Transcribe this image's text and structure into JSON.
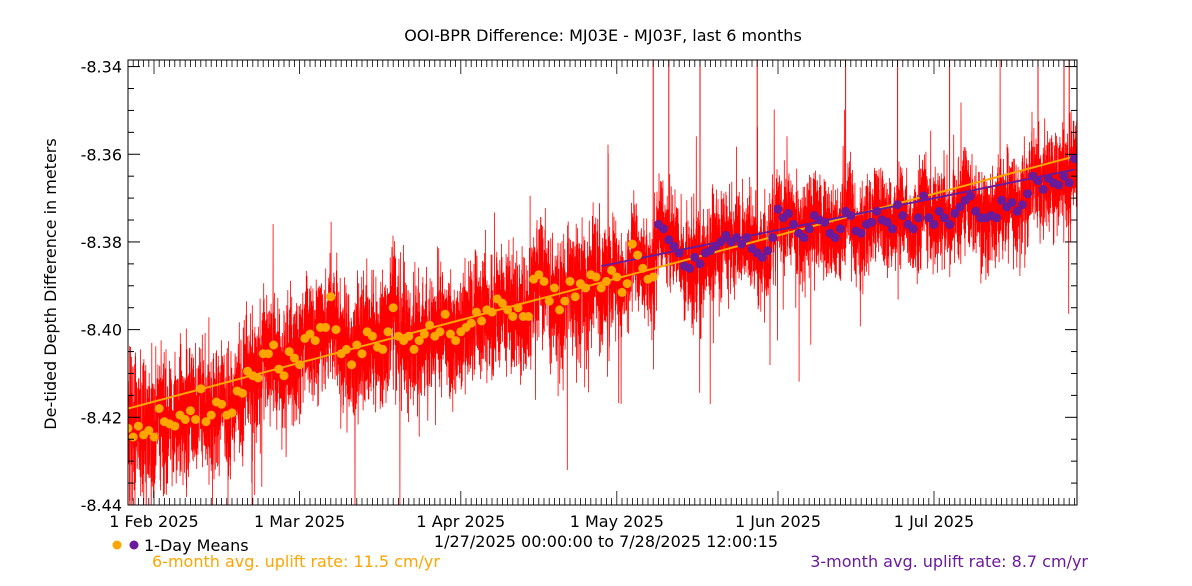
{
  "chart_data": {
    "type": "scatter",
    "title": "OOI-BPR Difference: MJ03E - MJ03F, last 6 months",
    "ylabel": "De-tided Depth Difference in meters",
    "xlabel": "",
    "ylim": [
      -8.44,
      -8.3385
    ],
    "xlim": [
      "2025-01-27",
      "2025-07-28T12:00:15"
    ],
    "y_ticks": [
      "-8.34",
      "-8.36",
      "-8.38",
      "-8.40",
      "-8.42",
      "-8.44"
    ],
    "x_ticks": [
      {
        "label": "1 Feb 2025",
        "date": "2025-02-01"
      },
      {
        "label": "1 Mar 2025",
        "date": "2025-03-01"
      },
      {
        "label": "1 Apr 2025",
        "date": "2025-04-01"
      },
      {
        "label": "1 May 2025",
        "date": "2025-05-01"
      },
      {
        "label": "1 Jun 2025",
        "date": "2025-06-01"
      },
      {
        "label": "1 Jul 2025",
        "date": "2025-07-01"
      }
    ],
    "date_range_label": "1/27/2025 00:00:00 to  7/28/2025 12:00:15",
    "legend_label": "1-Day Means",
    "rate_6month_label": "6-month avg. uplift rate:  11.5 cm/yr",
    "rate_3month_label": "3-month avg. uplift rate:  8.7 cm/yr",
    "grid": false,
    "colors": {
      "raw": "#ff0000",
      "six_month": "#ffa500",
      "three_month": "#6a1b9a"
    },
    "series": [
      {
        "name": "1-Day Means",
        "role": "six_month",
        "color": "#ffa500",
        "points": [
          [
            "2025-01-27",
            -8.4225
          ],
          [
            "2025-01-28",
            -8.4245
          ],
          [
            "2025-01-29",
            -8.422
          ],
          [
            "2025-01-30",
            -8.424
          ],
          [
            "2025-01-31",
            -8.423
          ],
          [
            "2025-02-01",
            -8.4245
          ],
          [
            "2025-02-02",
            -8.418
          ],
          [
            "2025-02-03",
            -8.421
          ],
          [
            "2025-02-04",
            -8.4215
          ],
          [
            "2025-02-05",
            -8.422
          ],
          [
            "2025-02-06",
            -8.4195
          ],
          [
            "2025-02-07",
            -8.4205
          ],
          [
            "2025-02-08",
            -8.4185
          ],
          [
            "2025-02-09",
            -8.4205
          ],
          [
            "2025-02-10",
            -8.4135
          ],
          [
            "2025-02-11",
            -8.421
          ],
          [
            "2025-02-12",
            -8.4195
          ],
          [
            "2025-02-13",
            -8.4165
          ],
          [
            "2025-02-14",
            -8.417
          ],
          [
            "2025-02-15",
            -8.4195
          ],
          [
            "2025-02-16",
            -8.419
          ],
          [
            "2025-02-17",
            -8.414
          ],
          [
            "2025-02-18",
            -8.4145
          ],
          [
            "2025-02-19",
            -8.4095
          ],
          [
            "2025-02-20",
            -8.4105
          ],
          [
            "2025-02-21",
            -8.411
          ],
          [
            "2025-02-22",
            -8.4055
          ],
          [
            "2025-02-23",
            -8.4055
          ],
          [
            "2025-02-24",
            -8.4035
          ],
          [
            "2025-02-25",
            -8.409
          ],
          [
            "2025-02-26",
            -8.4105
          ],
          [
            "2025-02-27",
            -8.405
          ],
          [
            "2025-02-28",
            -8.4065
          ],
          [
            "2025-03-01",
            -8.408
          ],
          [
            "2025-03-02",
            -8.402
          ],
          [
            "2025-03-03",
            -8.401
          ],
          [
            "2025-03-04",
            -8.4025
          ],
          [
            "2025-03-05",
            -8.3995
          ],
          [
            "2025-03-06",
            -8.3995
          ],
          [
            "2025-03-07",
            -8.3925
          ],
          [
            "2025-03-08",
            -8.4
          ],
          [
            "2025-03-09",
            -8.4055
          ],
          [
            "2025-03-10",
            -8.4045
          ],
          [
            "2025-03-11",
            -8.408
          ],
          [
            "2025-03-12",
            -8.4035
          ],
          [
            "2025-03-13",
            -8.4055
          ],
          [
            "2025-03-14",
            -8.4005
          ],
          [
            "2025-03-15",
            -8.4015
          ],
          [
            "2025-03-16",
            -8.404
          ],
          [
            "2025-03-17",
            -8.4045
          ],
          [
            "2025-03-18",
            -8.4005
          ],
          [
            "2025-03-19",
            -8.395
          ],
          [
            "2025-03-20",
            -8.4015
          ],
          [
            "2025-03-21",
            -8.4025
          ],
          [
            "2025-03-22",
            -8.4015
          ],
          [
            "2025-03-23",
            -8.4045
          ],
          [
            "2025-03-24",
            -8.4025
          ],
          [
            "2025-03-25",
            -8.401
          ],
          [
            "2025-03-26",
            -8.399
          ],
          [
            "2025-03-27",
            -8.4015
          ],
          [
            "2025-03-28",
            -8.4005
          ],
          [
            "2025-03-29",
            -8.3965
          ],
          [
            "2025-03-30",
            -8.401
          ],
          [
            "2025-03-31",
            -8.4025
          ],
          [
            "2025-04-01",
            -8.4005
          ],
          [
            "2025-04-02",
            -8.3995
          ],
          [
            "2025-04-03",
            -8.3985
          ],
          [
            "2025-04-04",
            -8.396
          ],
          [
            "2025-04-05",
            -8.398
          ],
          [
            "2025-04-06",
            -8.3955
          ],
          [
            "2025-04-07",
            -8.396
          ],
          [
            "2025-04-08",
            -8.393
          ],
          [
            "2025-04-09",
            -8.394
          ],
          [
            "2025-04-10",
            -8.3955
          ],
          [
            "2025-04-11",
            -8.397
          ],
          [
            "2025-04-12",
            -8.395
          ],
          [
            "2025-04-13",
            -8.397
          ],
          [
            "2025-04-14",
            -8.397
          ],
          [
            "2025-04-15",
            -8.3885
          ],
          [
            "2025-04-16",
            -8.3875
          ],
          [
            "2025-04-17",
            -8.389
          ],
          [
            "2025-04-18",
            -8.3935
          ],
          [
            "2025-04-19",
            -8.3905
          ],
          [
            "2025-04-20",
            -8.3955
          ],
          [
            "2025-04-21",
            -8.3935
          ],
          [
            "2025-04-22",
            -8.389
          ],
          [
            "2025-04-23",
            -8.3925
          ],
          [
            "2025-04-24",
            -8.3895
          ],
          [
            "2025-04-25",
            -8.3905
          ],
          [
            "2025-04-26",
            -8.3875
          ],
          [
            "2025-04-27",
            -8.388
          ],
          [
            "2025-04-28",
            -8.3905
          ],
          [
            "2025-04-29",
            -8.389
          ],
          [
            "2025-04-30",
            -8.3865
          ],
          [
            "2025-05-01",
            -8.388
          ],
          [
            "2025-05-02",
            -8.3915
          ],
          [
            "2025-05-03",
            -8.3895
          ],
          [
            "2025-05-04",
            -8.3805
          ],
          [
            "2025-05-05",
            -8.383
          ],
          [
            "2025-05-06",
            -8.386
          ],
          [
            "2025-05-07",
            -8.3885
          ],
          [
            "2025-05-08",
            -8.388
          ]
        ]
      },
      {
        "name": "1-Day Means",
        "role": "three_month",
        "color": "#6a1b9a",
        "points": [
          [
            "2025-05-09",
            -8.376
          ],
          [
            "2025-05-10",
            -8.377
          ],
          [
            "2025-05-11",
            -8.3795
          ],
          [
            "2025-05-12",
            -8.381
          ],
          [
            "2025-05-13",
            -8.3825
          ],
          [
            "2025-05-14",
            -8.3855
          ],
          [
            "2025-05-15",
            -8.386
          ],
          [
            "2025-05-16",
            -8.3835
          ],
          [
            "2025-05-17",
            -8.385
          ],
          [
            "2025-05-18",
            -8.3825
          ],
          [
            "2025-05-19",
            -8.382
          ],
          [
            "2025-05-20",
            -8.381
          ],
          [
            "2025-05-21",
            -8.38
          ],
          [
            "2025-05-22",
            -8.3785
          ],
          [
            "2025-05-23",
            -8.38
          ],
          [
            "2025-05-24",
            -8.379
          ],
          [
            "2025-05-25",
            -8.3805
          ],
          [
            "2025-05-26",
            -8.379
          ],
          [
            "2025-05-27",
            -8.3815
          ],
          [
            "2025-05-28",
            -8.3825
          ],
          [
            "2025-05-29",
            -8.3835
          ],
          [
            "2025-05-30",
            -8.382
          ],
          [
            "2025-05-31",
            -8.379
          ],
          [
            "2025-06-01",
            -8.3725
          ],
          [
            "2025-06-02",
            -8.3745
          ],
          [
            "2025-06-03",
            -8.3735
          ],
          [
            "2025-06-04",
            -8.376
          ],
          [
            "2025-06-05",
            -8.378
          ],
          [
            "2025-06-06",
            -8.379
          ],
          [
            "2025-06-07",
            -8.377
          ],
          [
            "2025-06-08",
            -8.374
          ],
          [
            "2025-06-09",
            -8.375
          ],
          [
            "2025-06-10",
            -8.3755
          ],
          [
            "2025-06-11",
            -8.378
          ],
          [
            "2025-06-12",
            -8.379
          ],
          [
            "2025-06-13",
            -8.377
          ],
          [
            "2025-06-14",
            -8.373
          ],
          [
            "2025-06-15",
            -8.374
          ],
          [
            "2025-06-16",
            -8.3775
          ],
          [
            "2025-06-17",
            -8.378
          ],
          [
            "2025-06-18",
            -8.376
          ],
          [
            "2025-06-19",
            -8.3755
          ],
          [
            "2025-06-20",
            -8.373
          ],
          [
            "2025-06-21",
            -8.375
          ],
          [
            "2025-06-22",
            -8.3755
          ],
          [
            "2025-06-23",
            -8.377
          ],
          [
            "2025-06-24",
            -8.3715
          ],
          [
            "2025-06-25",
            -8.374
          ],
          [
            "2025-06-26",
            -8.376
          ],
          [
            "2025-06-27",
            -8.377
          ],
          [
            "2025-06-28",
            -8.3745
          ],
          [
            "2025-06-29",
            -8.3695
          ],
          [
            "2025-06-30",
            -8.3745
          ],
          [
            "2025-07-01",
            -8.376
          ],
          [
            "2025-07-02",
            -8.373
          ],
          [
            "2025-07-03",
            -8.3745
          ],
          [
            "2025-07-04",
            -8.376
          ],
          [
            "2025-07-05",
            -8.3735
          ],
          [
            "2025-07-06",
            -8.372
          ],
          [
            "2025-07-07",
            -8.3705
          ],
          [
            "2025-07-08",
            -8.3695
          ],
          [
            "2025-07-09",
            -8.373
          ],
          [
            "2025-07-10",
            -8.3745
          ],
          [
            "2025-07-11",
            -8.3745
          ],
          [
            "2025-07-12",
            -8.374
          ],
          [
            "2025-07-13",
            -8.3745
          ],
          [
            "2025-07-14",
            -8.3705
          ],
          [
            "2025-07-15",
            -8.372
          ],
          [
            "2025-07-16",
            -8.371
          ],
          [
            "2025-07-17",
            -8.373
          ],
          [
            "2025-07-18",
            -8.3715
          ],
          [
            "2025-07-19",
            -8.369
          ],
          [
            "2025-07-20",
            -8.365
          ],
          [
            "2025-07-21",
            -8.366
          ],
          [
            "2025-07-22",
            -8.368
          ],
          [
            "2025-07-23",
            -8.3655
          ],
          [
            "2025-07-24",
            -8.3665
          ],
          [
            "2025-07-25",
            -8.367
          ],
          [
            "2025-07-26",
            -8.365
          ],
          [
            "2025-07-27",
            -8.3665
          ],
          [
            "2025-07-28",
            -8.361
          ]
        ]
      }
    ],
    "trend_lines": [
      {
        "name": "6-month avg. uplift rate",
        "color": "#ffa500",
        "start": [
          "2025-01-27",
          -8.418
        ],
        "end": [
          "2025-07-28",
          -8.3605
        ]
      },
      {
        "name": "3-month avg. uplift rate",
        "color": "#6a1b9a",
        "start": [
          "2025-04-28",
          -8.3855
        ],
        "end": [
          "2025-07-28",
          -8.3635
        ]
      }
    ],
    "raw_series": {
      "color": "#ff0000",
      "note_visible": false
    }
  }
}
